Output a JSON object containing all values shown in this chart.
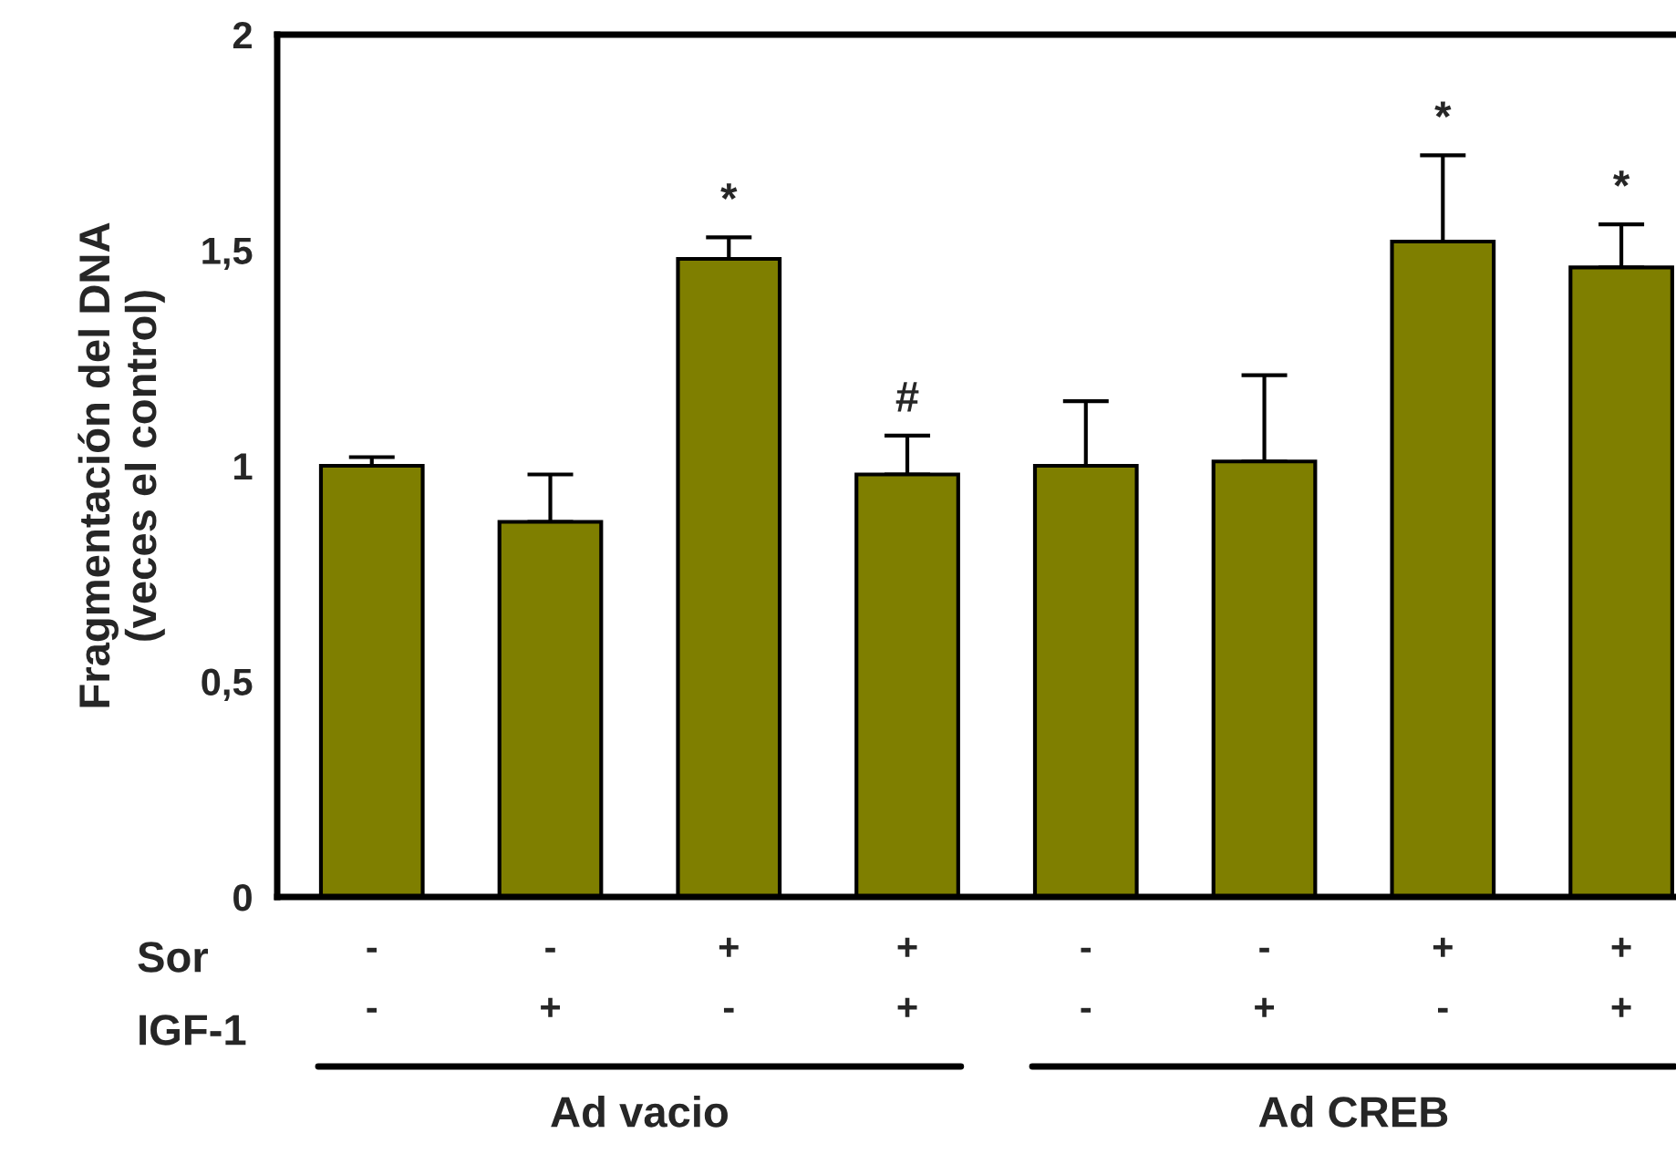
{
  "chart_data": {
    "type": "bar",
    "ylabel": "Fragmentación del DNA\n(veces el control)",
    "categories": [
      "-\n-",
      "-\n+",
      "+\n-",
      "+\n+",
      "-\n-",
      "-\n+",
      "+\n-",
      "+\n+"
    ],
    "values": [
      1.0,
      0.87,
      1.48,
      0.98,
      1.0,
      1.01,
      1.52,
      1.46
    ],
    "errors": [
      [
        1.0,
        1.02
      ],
      [
        0.87,
        0.98
      ],
      [
        1.48,
        1.53
      ],
      [
        0.98,
        1.07
      ],
      [
        1.0,
        1.15
      ],
      [
        1.01,
        1.21
      ],
      [
        1.52,
        1.72
      ],
      [
        1.46,
        1.56
      ]
    ],
    "value_labels": [
      null,
      null,
      "*",
      "#",
      null,
      null,
      "*",
      "*"
    ],
    "color": "#7f7f00",
    "ylim": [
      0,
      2
    ],
    "yticks": [
      0,
      {
        "value": 0.5,
        "label": "0,5"
      },
      1,
      {
        "value": 1.5,
        "label": "1,5"
      },
      2
    ],
    "annotations": [
      "Sor",
      "IGF-1",
      "Ad vacio",
      "Ad CREB"
    ],
    "grid": false,
    "legend": false
  }
}
